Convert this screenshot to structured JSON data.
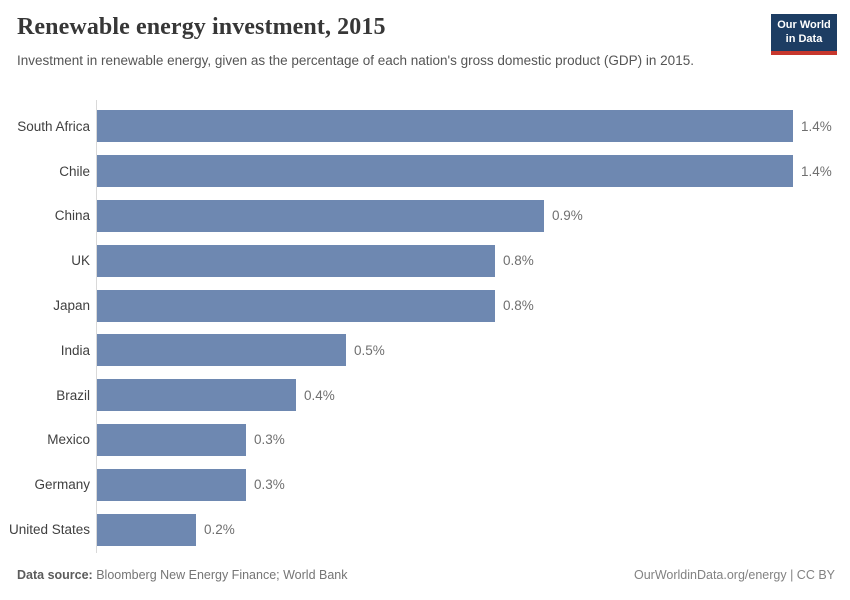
{
  "header": {
    "title": "Renewable energy investment, 2015",
    "subtitle": "Investment in renewable energy, given as the percentage of each nation's gross domestic product (GDP) in 2015.",
    "logo": {
      "line1": "Our World",
      "line2": "in Data"
    }
  },
  "chart_data": {
    "type": "bar",
    "orientation": "horizontal",
    "title": "Renewable energy investment, 2015",
    "xlabel": "",
    "ylabel": "",
    "categories": [
      "South Africa",
      "Chile",
      "China",
      "UK",
      "Japan",
      "India",
      "Brazil",
      "Mexico",
      "Germany",
      "United States"
    ],
    "values": [
      1.4,
      1.4,
      0.9,
      0.8,
      0.8,
      0.5,
      0.4,
      0.3,
      0.3,
      0.2
    ],
    "value_labels": [
      "1.4%",
      "1.4%",
      "0.9%",
      "0.8%",
      "0.8%",
      "0.5%",
      "0.4%",
      "0.3%",
      "0.3%",
      "0.2%"
    ],
    "unit": "% of GDP",
    "xlim": [
      0,
      1.48
    ],
    "grid": false,
    "legend": "none",
    "bar_color": "#6e88b1"
  },
  "footer": {
    "source_label": "Data source:",
    "source_text": " Bloomberg New Energy Finance; World Bank",
    "credit": "OurWorldinData.org/energy | CC BY"
  },
  "colors": {
    "bar": "#6e88b1",
    "axis_line": "#d9d9d9",
    "logo_bg": "#1d3d63",
    "logo_stripe": "#c7372d",
    "title_text": "#373737",
    "subtitle_text": "#555555",
    "category_text": "#404040",
    "value_text": "#6f6f6f"
  }
}
